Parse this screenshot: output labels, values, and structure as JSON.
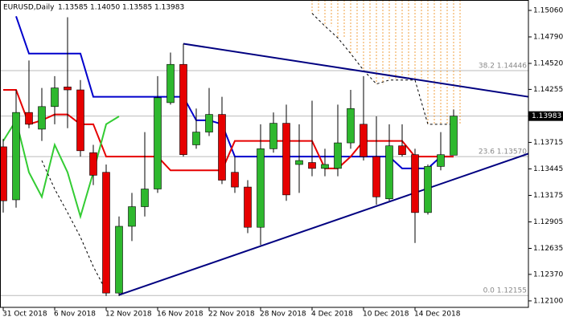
{
  "chart_data": {
    "type": "candlestick",
    "title": "EURUSD,Daily",
    "ohlc_labels": [
      "1.13585",
      "1.14050",
      "1.13585",
      "1.13983"
    ],
    "categories": [
      "31 Oct 2018",
      null,
      null,
      null,
      "6 Nov 2018",
      null,
      null,
      null,
      "12 Nov 2018",
      null,
      null,
      null,
      "16 Nov 2018",
      null,
      null,
      null,
      "22 Nov 2018",
      null,
      null,
      null,
      "28 Nov 2018",
      null,
      null,
      null,
      "4 Dec 2018",
      null,
      null,
      null,
      "10 Dec 2018",
      null,
      null,
      null,
      "14 Dec 2018",
      null,
      null,
      null
    ],
    "open": [
      1.1367,
      1.1313,
      1.1402,
      1.1385,
      1.1408,
      1.1428,
      1.1425,
      1.1361,
      1.1341,
      1.1218,
      1.1286,
      1.1306,
      1.1324,
      1.1412,
      1.1451,
      1.1369,
      1.1382,
      1.14,
      1.1341,
      1.1326,
      1.1285,
      1.1365,
      1.1391,
      1.1349,
      1.1351,
      1.1345,
      1.1345,
      1.1371,
      1.139,
      1.1357,
      1.1314,
      1.1368,
      1.1359,
      1.13,
      1.1347,
      1.13585
    ],
    "high": [
      1.1375,
      1.1425,
      1.1455,
      1.1427,
      1.1439,
      1.1499,
      1.1435,
      1.1369,
      1.1349,
      1.1296,
      1.132,
      1.1382,
      1.1439,
      1.1463,
      1.1472,
      1.1406,
      1.1427,
      1.1418,
      1.1357,
      1.1333,
      1.139,
      1.1402,
      1.141,
      1.139,
      1.1414,
      1.1365,
      1.141,
      1.1425,
      1.1439,
      1.1398,
      1.139,
      1.139,
      1.1365,
      1.1349,
      1.1382,
      1.1405
    ],
    "low": [
      1.13,
      1.1305,
      1.1386,
      1.1373,
      1.139,
      1.1386,
      1.1357,
      1.1328,
      1.1215,
      1.1215,
      1.1271,
      1.1296,
      1.132,
      1.141,
      1.1357,
      1.1365,
      1.1378,
      1.1329,
      1.132,
      1.1279,
      1.1267,
      1.1361,
      1.1312,
      1.132,
      1.1337,
      1.1337,
      1.1337,
      1.1365,
      1.1353,
      1.1308,
      1.1312,
      1.1357,
      1.1269,
      1.1298,
      1.1343,
      1.13585
    ],
    "close": [
      1.1312,
      1.1402,
      1.139,
      1.1408,
      1.1427,
      1.1425,
      1.1363,
      1.1338,
      1.1218,
      1.1286,
      1.1306,
      1.1324,
      1.1417,
      1.1451,
      1.1359,
      1.1382,
      1.14,
      1.1333,
      1.1326,
      1.1285,
      1.1365,
      1.1391,
      1.1318,
      1.1353,
      1.1345,
      1.1349,
      1.1371,
      1.1406,
      1.1357,
      1.1316,
      1.1368,
      1.1359,
      1.13,
      1.1347,
      1.1359,
      1.13983
    ],
    "up_color": "#2eb82e",
    "down_color": "#e60000",
    "lines": [
      {
        "color": "#0000cc",
        "dashed": false,
        "values": [
          null,
          1.15,
          1.1462,
          1.1462,
          1.1462,
          1.1462,
          1.1462,
          1.1418,
          1.1418,
          1.1418,
          1.1418,
          1.1418,
          1.1418,
          1.1418,
          1.1418,
          1.1394,
          1.1394,
          1.139,
          1.1357,
          1.1357,
          1.1357,
          1.1357,
          1.1357,
          1.1357,
          1.1357,
          1.1357,
          1.1357,
          1.1357,
          1.1357,
          1.1357,
          1.1357,
          1.1345,
          1.1345,
          1.1345,
          1.1357,
          1.1357
        ]
      },
      {
        "color": "#e60000",
        "dashed": false,
        "values": [
          1.1425,
          1.1425,
          1.139,
          1.1394,
          1.14,
          1.14,
          1.139,
          1.139,
          1.1357,
          1.1357,
          1.1357,
          1.1357,
          1.1357,
          1.1343,
          1.1343,
          1.1343,
          1.1343,
          1.1343,
          1.1373,
          1.1373,
          1.1373,
          1.1373,
          1.1373,
          1.1373,
          1.1373,
          1.1345,
          1.1345,
          1.1357,
          1.1373,
          1.1373,
          1.1373,
          1.1373,
          1.1357,
          1.1357,
          1.1357,
          1.1357
        ]
      },
      {
        "color": "#33cc33",
        "dashed": false,
        "values": [
          1.1373,
          1.1394,
          1.1341,
          1.1316,
          1.1369,
          1.1341,
          1.1296,
          1.1341,
          1.139,
          1.1398,
          null,
          null,
          null,
          null,
          null,
          null,
          null,
          null,
          null,
          null,
          null,
          null,
          null,
          null,
          null,
          null,
          null,
          null,
          null,
          null,
          null,
          null,
          null,
          null,
          null,
          null
        ]
      },
      {
        "color": "#000000",
        "dashed": true,
        "values": [
          null,
          null,
          null,
          1.1353,
          1.1324,
          1.13,
          1.1275,
          1.1245,
          1.122,
          null,
          null,
          null,
          null,
          null,
          null,
          null,
          null,
          null,
          null,
          null,
          null,
          null,
          null,
          null,
          1.1503,
          1.149,
          1.1478,
          1.1462,
          1.1445,
          1.1431,
          1.1435,
          1.1435,
          1.1435,
          1.139,
          1.139,
          1.139
        ]
      }
    ],
    "cloud_color": "#f0a040",
    "trendlines": [
      {
        "color": "#000080",
        "x": [
          14,
          40.8
        ],
        "y": [
          1.1472,
          1.1418
        ]
      },
      {
        "color": "#000080",
        "x": [
          9,
          40.8
        ],
        "y": [
          1.1216,
          1.136
        ]
      }
    ],
    "fib_levels": [
      {
        "value": 1.14446,
        "label": "38.2 1.14446"
      },
      {
        "value": 1.1357,
        "label": "23.6 1.13570"
      },
      {
        "value": 1.12155,
        "label": "0.0 1.12155"
      }
    ],
    "last_price": {
      "value": 1.13983,
      "label": "1.13983"
    },
    "ylim": [
      1.12034,
      1.15166
    ],
    "yticks": [
      {
        "value": 1.1506,
        "label": "1.15060"
      },
      {
        "value": 1.1479,
        "label": "1.14790"
      },
      {
        "value": 1.1452,
        "label": "1.14520"
      },
      {
        "value": 1.14255,
        "label": "1.14255"
      },
      {
        "value": 1.13715,
        "label": "1.13715"
      },
      {
        "value": 1.13445,
        "label": "1.13445"
      },
      {
        "value": 1.13175,
        "label": "1.13175"
      },
      {
        "value": 1.12905,
        "label": "1.12905"
      },
      {
        "value": 1.12635,
        "label": "1.12635"
      },
      {
        "value": 1.1237,
        "label": "1.12370"
      },
      {
        "value": 1.121,
        "label": "1.12100"
      }
    ]
  }
}
